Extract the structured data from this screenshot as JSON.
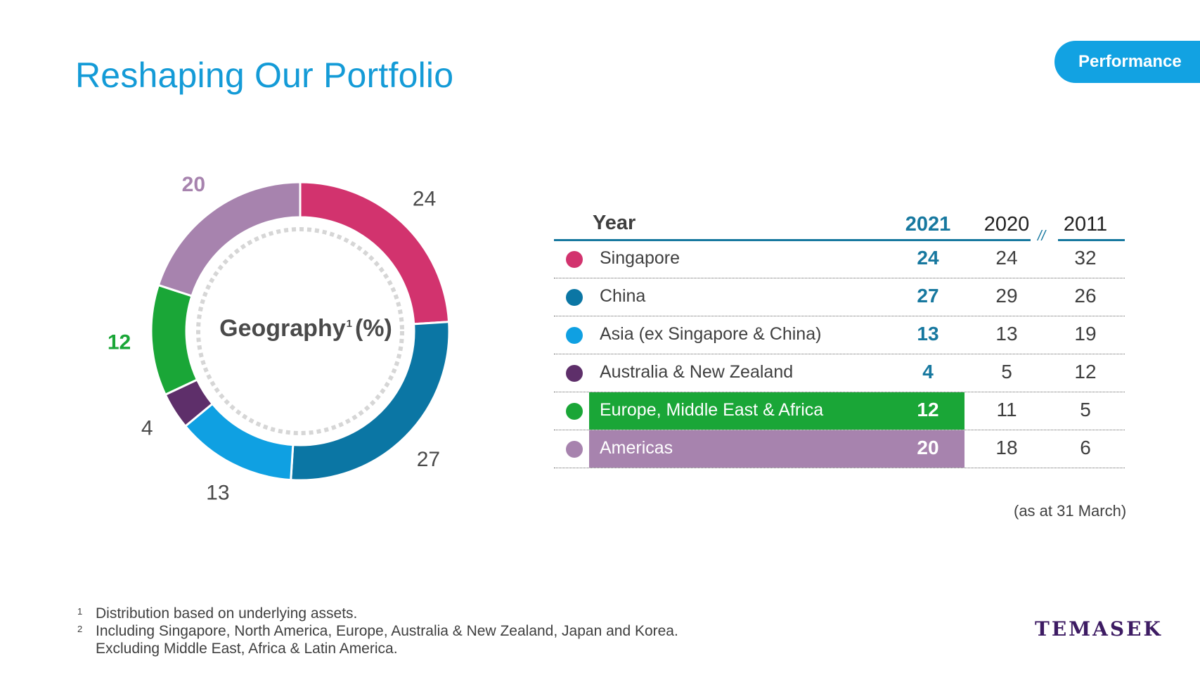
{
  "header": {
    "title": "Reshaping Our Portfolio",
    "section_tab": "Performance"
  },
  "chart_data": {
    "type": "pie",
    "title": "Geography",
    "title_footnote": "1",
    "title_suffix": "(%)",
    "slices": [
      {
        "label": "Singapore",
        "value": 24,
        "color": "#d2336e",
        "value_color": "#4a4a4a"
      },
      {
        "label": "China",
        "value": 27,
        "color": "#0b76a4",
        "value_color": "#4a4a4a"
      },
      {
        "label": "Asia (ex Singapore & China)",
        "value": 13,
        "color": "#0fa0e2",
        "value_color": "#4a4a4a"
      },
      {
        "label": "Australia & New Zealand",
        "value": 4,
        "color": "#5e2f6a",
        "value_color": "#4a4a4a"
      },
      {
        "label": "Europe, Middle East & Africa",
        "value": 12,
        "color": "#1aa637",
        "value_color": "#1aa637"
      },
      {
        "label": "Americas",
        "value": 20,
        "color": "#a783ae",
        "value_color": "#a783ae"
      }
    ]
  },
  "table": {
    "year_label": "Year",
    "years": [
      "2021",
      "2020",
      "2011"
    ],
    "rows": [
      {
        "region": "Singapore",
        "color": "#d2336e",
        "values": [
          "24",
          "24",
          "32"
        ],
        "highlight": false
      },
      {
        "region": "China",
        "color": "#0b76a4",
        "values": [
          "27",
          "29",
          "26"
        ],
        "highlight": false
      },
      {
        "region": "Asia (ex Singapore & China)",
        "color": "#0fa0e2",
        "values": [
          "13",
          "13",
          "19"
        ],
        "highlight": false
      },
      {
        "region": "Australia & New Zealand",
        "color": "#5e2f6a",
        "values": [
          "4",
          "5",
          "12"
        ],
        "highlight": false
      },
      {
        "region": "Europe, Middle East & Africa",
        "color": "#1aa637",
        "values": [
          "12",
          "11",
          "5"
        ],
        "highlight": true
      },
      {
        "region": "Americas",
        "color": "#a783ae",
        "values": [
          "20",
          "18",
          "6"
        ],
        "highlight": true
      }
    ],
    "axis_break": "//",
    "note": "(as at 31 March)"
  },
  "footnotes": [
    {
      "marker": "1",
      "lines": [
        "Distribution based on underlying assets."
      ]
    },
    {
      "marker": "2",
      "lines": [
        "Including Singapore, North America, Europe, Australia & New Zealand, Japan and Korea.",
        "Excluding Middle East, Africa & Latin America."
      ]
    }
  ],
  "brand": {
    "logo_text": "TEMASEK"
  }
}
